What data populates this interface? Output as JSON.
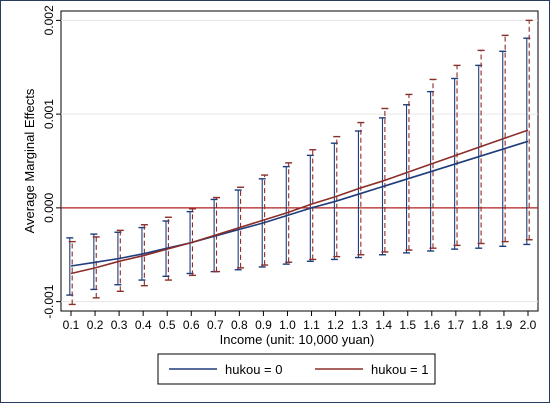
{
  "chart_data": {
    "type": "line",
    "title": "",
    "xlabel": "Income (unit: 10,000 yuan)",
    "ylabel": "Average Marginal Effects",
    "x": [
      0.1,
      0.2,
      0.3,
      0.4,
      0.5,
      0.6,
      0.7,
      0.8,
      0.9,
      1.0,
      1.1,
      1.2,
      1.3,
      1.4,
      1.5,
      1.6,
      1.7,
      1.8,
      1.9,
      2.0
    ],
    "x_tick_labels": [
      "0.1",
      "0.2",
      "0.3",
      "0.4",
      "0.5",
      "0.6",
      "0.7",
      "0.8",
      "0.9",
      "1.0",
      "1.1",
      "1.2",
      "1.3",
      "1.4",
      "1.5",
      "1.6",
      "1.7",
      "1.8",
      "1.9",
      "2.0"
    ],
    "y_ticks": [
      -0.001,
      0,
      0.001,
      0.002
    ],
    "y_tick_labels": [
      "-0.001",
      "0.000",
      "0.001",
      "0.002"
    ],
    "xlim": [
      0.1,
      2.0
    ],
    "ylim": [
      -0.0011,
      0.0021
    ],
    "reference_line_y": 0,
    "grid": "horizontal",
    "legend_position": "bottom",
    "series": [
      {
        "name": "hukou = 0",
        "color": "#1f3d7a",
        "y": [
          -0.00062,
          -0.00058,
          -0.00054,
          -0.00049,
          -0.00043,
          -0.00037,
          -0.0003,
          -0.00023,
          -0.00016,
          -8e-05,
          0.0,
          7e-05,
          0.00015,
          0.00023,
          0.00031,
          0.00039,
          0.00047,
          0.00055,
          0.00063,
          0.00071
        ],
        "lower": [
          -0.00093,
          -0.00087,
          -0.00082,
          -0.00077,
          -0.00073,
          -0.0007,
          -0.00068,
          -0.00066,
          -0.00063,
          -0.0006,
          -0.00057,
          -0.00055,
          -0.00053,
          -0.0005,
          -0.00048,
          -0.00046,
          -0.00044,
          -0.00043,
          -0.00041,
          -0.00039
        ],
        "upper": [
          -0.00032,
          -0.00028,
          -0.00026,
          -0.00021,
          -0.00014,
          -4e-05,
          9e-05,
          0.00019,
          0.00031,
          0.00044,
          0.00056,
          0.00069,
          0.00082,
          0.00096,
          0.0011,
          0.00124,
          0.00138,
          0.00152,
          0.00167,
          0.00181
        ]
      },
      {
        "name": "hukou = 1",
        "color": "#8b2e2a",
        "y": [
          -0.0007,
          -0.00064,
          -0.00057,
          -0.00051,
          -0.00044,
          -0.00037,
          -0.00029,
          -0.00021,
          -0.00013,
          -5e-05,
          4e-05,
          0.00012,
          0.00021,
          0.00029,
          0.00038,
          0.00047,
          0.00056,
          0.00065,
          0.00074,
          0.00083
        ],
        "lower": [
          -0.00103,
          -0.00096,
          -0.00089,
          -0.00083,
          -0.00077,
          -0.00072,
          -0.00068,
          -0.00064,
          -0.00061,
          -0.00058,
          -0.00055,
          -0.00052,
          -0.0005,
          -0.00047,
          -0.00045,
          -0.00043,
          -0.0004,
          -0.00038,
          -0.00036,
          -0.00034
        ],
        "upper": [
          -0.00036,
          -0.00031,
          -0.00024,
          -0.00018,
          -0.0001,
          -1e-05,
          0.00011,
          0.00022,
          0.00035,
          0.00048,
          0.00062,
          0.00076,
          0.00091,
          0.00106,
          0.00121,
          0.00137,
          0.00152,
          0.00168,
          0.00184,
          0.002
        ]
      }
    ]
  }
}
